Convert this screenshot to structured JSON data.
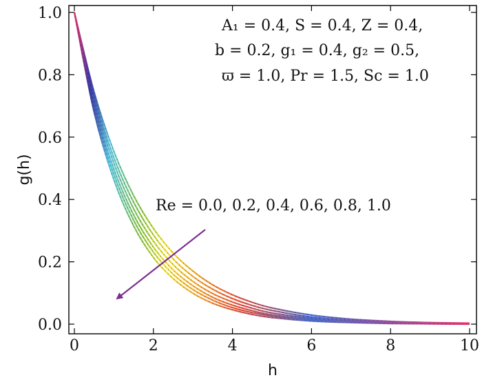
{
  "chart_data": {
    "type": "line",
    "title": "",
    "xlabel": "h",
    "ylabel": "g(h)",
    "xlim": [
      0,
      10
    ],
    "ylim": [
      0,
      1
    ],
    "xticks": [
      "0",
      "2",
      "4",
      "6",
      "8",
      "10"
    ],
    "yticks": [
      "0.0",
      "0.2",
      "0.4",
      "0.6",
      "0.8",
      "1.0"
    ],
    "grid": false,
    "parameters": [
      "A₁ = 0.4, S = 0.4, Z = 0.4,",
      "b = 0.2, g₁ = 0.4, g₂ = 0.5,",
      "ϖ = 1.0, Pr = 1.5,  Sc = 1.0"
    ],
    "arrow_label": "Re = 0.0, 0.2, 0.4, 0.6, 0.8, 1.0",
    "colormap": [
      "#e8336d",
      "#3b3aa6",
      "#5cc8e0",
      "#8cc63f",
      "#f2e12a",
      "#f39c2a",
      "#e74c3c",
      "#4a6fd1"
    ],
    "arrow_color": "#7a2e8e",
    "x": [
      0,
      0.5,
      1,
      1.5,
      2,
      2.5,
      3,
      3.5,
      4,
      4.5,
      5,
      6,
      7,
      8,
      9,
      10
    ],
    "series": [
      {
        "Re": "0.0",
        "values": [
          1.0,
          0.744,
          0.554,
          0.412,
          0.307,
          0.228,
          0.17,
          0.126,
          0.094,
          0.07,
          0.052,
          0.029,
          0.016,
          0.009,
          0.005,
          0.003
        ]
      },
      {
        "Re": "0.2",
        "values": [
          1.0,
          0.731,
          0.534,
          0.391,
          0.286,
          0.209,
          0.153,
          0.112,
          0.082,
          0.06,
          0.044,
          0.023,
          0.012,
          0.007,
          0.004,
          0.002
        ]
      },
      {
        "Re": "0.4",
        "values": [
          1.0,
          0.718,
          0.516,
          0.37,
          0.266,
          0.191,
          0.137,
          0.098,
          0.071,
          0.051,
          0.036,
          0.019,
          0.01,
          0.005,
          0.003,
          0.001
        ]
      },
      {
        "Re": "0.6",
        "values": [
          1.0,
          0.705,
          0.497,
          0.35,
          0.247,
          0.174,
          0.123,
          0.086,
          0.061,
          0.043,
          0.03,
          0.015,
          0.007,
          0.004,
          0.002,
          0.001
        ]
      },
      {
        "Re": "0.8",
        "values": [
          1.0,
          0.693,
          0.48,
          0.333,
          0.231,
          0.16,
          0.111,
          0.077,
          0.053,
          0.037,
          0.026,
          0.012,
          0.006,
          0.003,
          0.001,
          0.001
        ]
      },
      {
        "Re": "1.0",
        "values": [
          1.0,
          0.68,
          0.463,
          0.315,
          0.214,
          0.146,
          0.099,
          0.067,
          0.046,
          0.031,
          0.021,
          0.01,
          0.005,
          0.002,
          0.001,
          0.0
        ]
      }
    ]
  }
}
